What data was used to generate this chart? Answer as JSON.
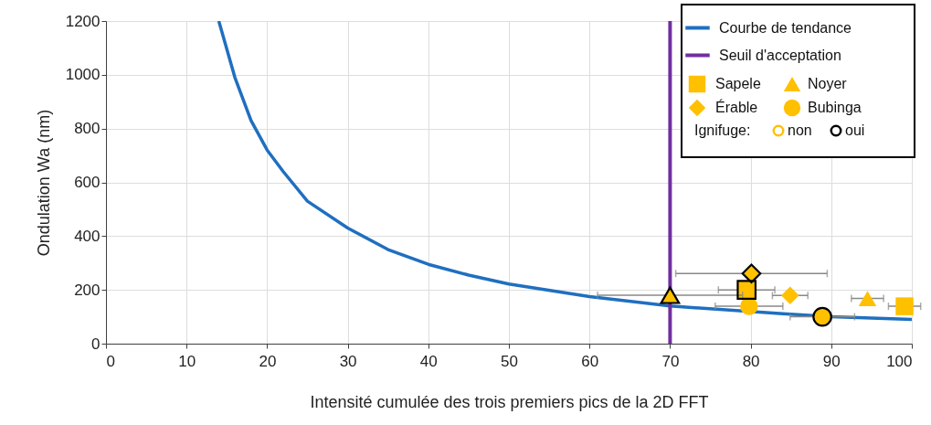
{
  "chart_data": {
    "type": "scatter",
    "xlabel": "Intensité cumulée des trois premiers pics de la 2D FFT",
    "ylabel": "Ondulation Wa (nm)",
    "xlim": [
      0,
      100
    ],
    "xticks": [
      0,
      10,
      20,
      30,
      40,
      50,
      60,
      70,
      80,
      90,
      100
    ],
    "ylim": [
      0,
      1200
    ],
    "yticks": [
      0,
      200,
      400,
      600,
      800,
      1000,
      1200
    ],
    "grid": true,
    "legend": "top right",
    "legend_title": "Ignifuge:",
    "annotations": [
      "non"
    ],
    "series": [
      {
        "name": "Courbe de tendance",
        "type": "line",
        "color": "#1f6fc0",
        "x": [
          14,
          16,
          18,
          20,
          22,
          25,
          30,
          35,
          40,
          45,
          50,
          60,
          70,
          84,
          90,
          100
        ],
        "values": [
          1200,
          990,
          830,
          720,
          640,
          530,
          430,
          350,
          295,
          255,
          222,
          175,
          140,
          111,
          100,
          90
        ]
      },
      {
        "name": "Seuil d'acceptation",
        "type": "line",
        "color": "#7030a0",
        "x": [
          70,
          70
        ],
        "values": [
          0,
          1200
        ]
      },
      {
        "name": "Sapele",
        "marker": "square",
        "color": "#ffc000",
        "x": [
          99.1,
          79.5
        ],
        "values": [
          139,
          200
        ],
        "xerrors": [
          2,
          3.5
        ]
      },
      {
        "name": "Noyer",
        "marker": "triangle",
        "color": "#ffc000",
        "x": [
          94.5,
          70
        ],
        "values": [
          168,
          180
        ],
        "xerrors": [
          2,
          9
        ]
      },
      {
        "name": "Érable",
        "marker": "diamond",
        "color": "#ffc000",
        "x": [
          84.9,
          80.1
        ],
        "values": [
          179,
          261
        ],
        "xerrors": [
          2.2,
          9.4
        ]
      },
      {
        "name": "Bubinga",
        "marker": "circle",
        "color": "#ffc000",
        "x": [
          79.8,
          88.9
        ],
        "values": [
          139,
          100
        ],
        "xerrors": [
          4.2,
          4
        ]
      },
      {
        "marker": "square",
        "color": "#000000",
        "x": [
          79.5
        ],
        "values": [
          200
        ]
      },
      {
        "marker": "triangle",
        "color": "#000000",
        "x": [
          70
        ],
        "values": [
          180
        ]
      },
      {
        "marker": "diamond",
        "color": "#000000",
        "x": [
          80.1
        ],
        "values": [
          261
        ]
      },
      {
        "name": "oui",
        "marker": "circle",
        "color": "#000000",
        "x": [
          88.9
        ],
        "values": [
          100
        ]
      }
    ]
  }
}
